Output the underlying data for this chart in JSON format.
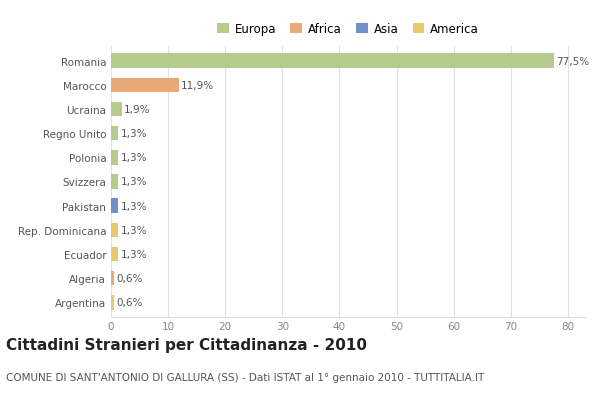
{
  "countries": [
    "Romania",
    "Marocco",
    "Ucraina",
    "Regno Unito",
    "Polonia",
    "Svizzera",
    "Pakistan",
    "Rep. Dominicana",
    "Ecuador",
    "Algeria",
    "Argentina"
  ],
  "values": [
    77.5,
    11.9,
    1.9,
    1.3,
    1.3,
    1.3,
    1.3,
    1.3,
    1.3,
    0.6,
    0.6
  ],
  "labels": [
    "77,5%",
    "11,9%",
    "1,9%",
    "1,3%",
    "1,3%",
    "1,3%",
    "1,3%",
    "1,3%",
    "1,3%",
    "0,6%",
    "0,6%"
  ],
  "colors": [
    "#b5cc8e",
    "#e8a878",
    "#b5cc8e",
    "#b5cc8e",
    "#b5cc8e",
    "#b5cc8e",
    "#7090c8",
    "#e8c870",
    "#e8c870",
    "#e8a878",
    "#e8c870"
  ],
  "legend_labels": [
    "Europa",
    "Africa",
    "Asia",
    "America"
  ],
  "legend_colors": [
    "#b5cc8e",
    "#e8a878",
    "#7090c8",
    "#e8c870"
  ],
  "title": "Cittadini Stranieri per Cittadinanza - 2010",
  "subtitle": "COMUNE DI SANT'ANTONIO DI GALLURA (SS) - Dati ISTAT al 1° gennaio 2010 - TUTTITALIA.IT",
  "xlim": [
    0,
    83
  ],
  "xticks": [
    0,
    10,
    20,
    30,
    40,
    50,
    60,
    70,
    80
  ],
  "background_color": "#ffffff",
  "grid_color": "#e0e0e0",
  "bar_height": 0.6,
  "title_fontsize": 11,
  "subtitle_fontsize": 7.5,
  "label_fontsize": 7.5,
  "tick_fontsize": 7.5,
  "legend_fontsize": 8.5
}
